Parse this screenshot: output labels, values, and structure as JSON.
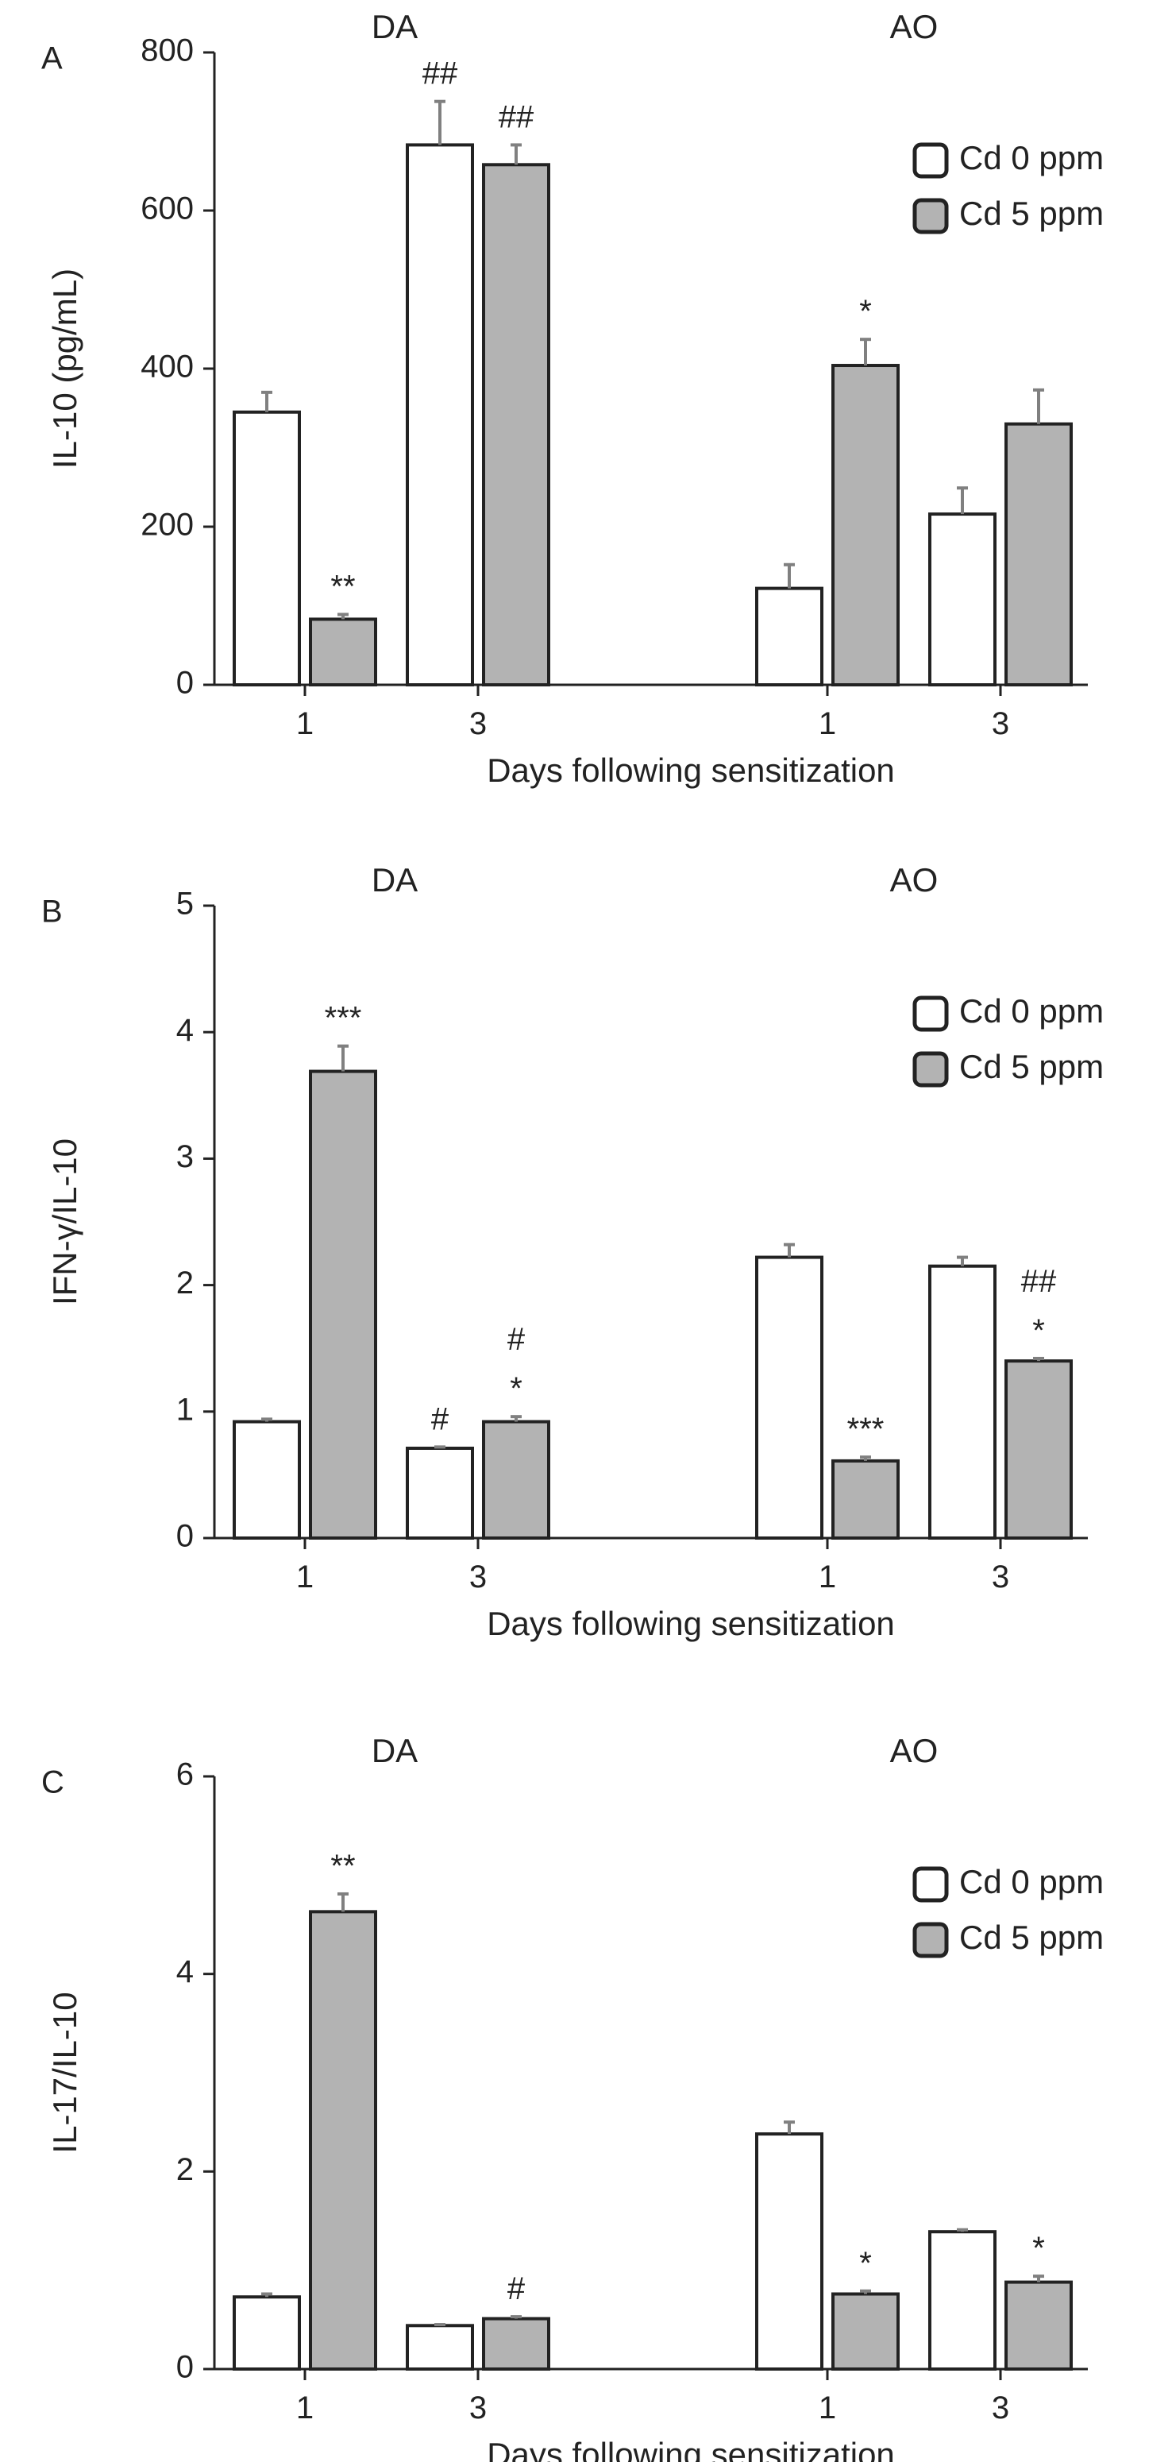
{
  "figure": {
    "legend": [
      {
        "label": "Cd 0 ppm",
        "color": "#ffffff"
      },
      {
        "label": "Cd 5 ppm",
        "color": "#b3b3b3"
      }
    ]
  },
  "chart_data": [
    {
      "type": "bar",
      "panel": "A",
      "xlabel": "Days following sensitization",
      "ylabel": "IL-10 (pg/mL)",
      "ylim": [
        0,
        800
      ],
      "yticks": [
        "0",
        "200",
        "400",
        "600",
        "800"
      ],
      "groups": [
        "DA",
        "AO"
      ],
      "categories": [
        "1",
        "3",
        "1",
        "3"
      ],
      "series": [
        {
          "name": "Cd 0 ppm",
          "color": "#ffffff",
          "values": [
            345,
            683,
            122,
            216
          ],
          "errors": [
            25,
            55,
            30,
            33
          ]
        },
        {
          "name": "Cd 5 ppm",
          "color": "#b3b3b3",
          "values": [
            83,
            658,
            404,
            330
          ],
          "errors": [
            6,
            25,
            33,
            43
          ]
        }
      ],
      "annotations": [
        {
          "category": 0,
          "series": 1,
          "text": "**"
        },
        {
          "category": 1,
          "series": 0,
          "text": "##"
        },
        {
          "category": 1,
          "series": 1,
          "text": "##"
        },
        {
          "category": 2,
          "series": 1,
          "text": "*"
        }
      ],
      "grid": false,
      "legend_position": "top-right"
    },
    {
      "type": "bar",
      "panel": "B",
      "xlabel": "Days following sensitization",
      "ylabel": "IFN-γ/IL-10",
      "ylim": [
        0,
        5
      ],
      "yticks": [
        "0",
        "1",
        "2",
        "3",
        "4",
        "5"
      ],
      "groups": [
        "DA",
        "AO"
      ],
      "categories": [
        "1",
        "3",
        "1",
        "3"
      ],
      "series": [
        {
          "name": "Cd 0 ppm",
          "color": "#ffffff",
          "values": [
            0.92,
            0.71,
            2.22,
            2.15
          ],
          "errors": [
            0.02,
            0.01,
            0.1,
            0.07
          ]
        },
        {
          "name": "Cd 5 ppm",
          "color": "#b3b3b3",
          "values": [
            3.69,
            0.92,
            0.61,
            1.4
          ],
          "errors": [
            0.2,
            0.04,
            0.03,
            0.02
          ]
        }
      ],
      "annotations": [
        {
          "category": 0,
          "series": 1,
          "text": "***"
        },
        {
          "category": 1,
          "series": 0,
          "text": "#"
        },
        {
          "category": 1,
          "series": 1,
          "text": "*"
        },
        {
          "category": 1,
          "series": 1,
          "text": "#"
        },
        {
          "category": 2,
          "series": 1,
          "text": "***"
        },
        {
          "category": 3,
          "series": 1,
          "text": "*"
        },
        {
          "category": 3,
          "series": 1,
          "text": "##"
        }
      ],
      "grid": false,
      "legend_position": "top-right"
    },
    {
      "type": "bar",
      "panel": "C",
      "xlabel": "Days following sensitization",
      "ylabel": "IL-17/IL-10",
      "ylim": [
        0,
        6
      ],
      "yticks": [
        "0",
        "2",
        "4",
        "6"
      ],
      "groups": [
        "DA",
        "AO"
      ],
      "categories": [
        "1",
        "3",
        "1",
        "3"
      ],
      "series": [
        {
          "name": "Cd 0 ppm",
          "color": "#ffffff",
          "values": [
            0.73,
            0.44,
            2.38,
            1.39
          ],
          "errors": [
            0.03,
            0.01,
            0.12,
            0.02
          ]
        },
        {
          "name": "Cd 5 ppm",
          "color": "#b3b3b3",
          "values": [
            4.63,
            0.51,
            0.76,
            0.88
          ],
          "errors": [
            0.18,
            0.02,
            0.03,
            0.06
          ]
        }
      ],
      "annotations": [
        {
          "category": 0,
          "series": 1,
          "text": "**"
        },
        {
          "category": 1,
          "series": 1,
          "text": "#"
        },
        {
          "category": 2,
          "series": 1,
          "text": "*"
        },
        {
          "category": 3,
          "series": 1,
          "text": "*"
        }
      ],
      "grid": false,
      "legend_position": "top-right"
    }
  ]
}
